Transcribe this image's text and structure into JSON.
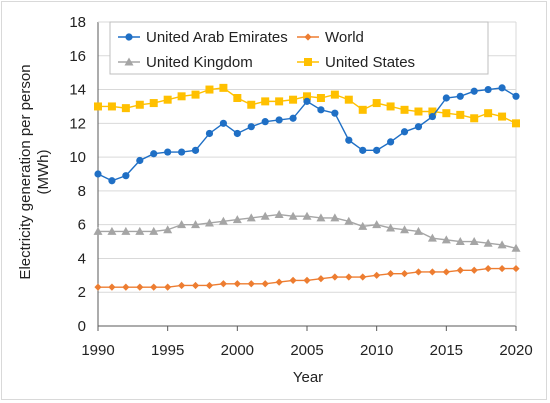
{
  "chart_data": {
    "type": "line",
    "title": "",
    "xlabel": "Year",
    "ylabel_line1": "Electricity generation per person",
    "ylabel_line2": "(MWh)",
    "xlim": [
      1990,
      2020
    ],
    "ylim": [
      0,
      18
    ],
    "xticks": [
      "1990",
      "1995",
      "2000",
      "2005",
      "2010",
      "2015",
      "2020"
    ],
    "yticks": [
      "0",
      "2",
      "4",
      "6",
      "8",
      "10",
      "12",
      "14",
      "16",
      "18"
    ],
    "grid": "horizontal",
    "legend_placement": "top",
    "x": [
      1990,
      1991,
      1992,
      1993,
      1994,
      1995,
      1996,
      1997,
      1998,
      1999,
      2000,
      2001,
      2002,
      2003,
      2004,
      2005,
      2006,
      2007,
      2008,
      2009,
      2010,
      2011,
      2012,
      2013,
      2014,
      2015,
      2016,
      2017,
      2018,
      2019,
      2020
    ],
    "series": [
      {
        "name": "United Arab Emirates",
        "color": "#1f6fc5",
        "marker": "circle",
        "values": [
          9.0,
          8.6,
          8.9,
          9.8,
          10.2,
          10.3,
          10.3,
          10.4,
          11.4,
          12.0,
          11.4,
          11.8,
          12.1,
          12.2,
          12.3,
          13.3,
          12.8,
          12.6,
          11.0,
          10.4,
          10.4,
          10.9,
          11.5,
          11.8,
          12.4,
          13.5,
          13.6,
          13.9,
          14.0,
          14.1,
          13.6
        ]
      },
      {
        "name": "World",
        "color": "#ed7d31",
        "marker": "diamond",
        "values": [
          2.3,
          2.3,
          2.3,
          2.3,
          2.3,
          2.3,
          2.4,
          2.4,
          2.4,
          2.5,
          2.5,
          2.5,
          2.5,
          2.6,
          2.7,
          2.7,
          2.8,
          2.9,
          2.9,
          2.9,
          3.0,
          3.1,
          3.1,
          3.2,
          3.2,
          3.2,
          3.3,
          3.3,
          3.4,
          3.4,
          3.4
        ]
      },
      {
        "name": "United Kingdom",
        "color": "#a5a5a5",
        "marker": "triangle",
        "values": [
          5.6,
          5.6,
          5.6,
          5.6,
          5.6,
          5.7,
          6.0,
          6.0,
          6.1,
          6.2,
          6.3,
          6.4,
          6.5,
          6.6,
          6.5,
          6.5,
          6.4,
          6.4,
          6.2,
          5.9,
          6.0,
          5.8,
          5.7,
          5.6,
          5.2,
          5.1,
          5.0,
          5.0,
          4.9,
          4.8,
          4.6
        ]
      },
      {
        "name": "United States",
        "color": "#ffc000",
        "marker": "square",
        "values": [
          13.0,
          13.0,
          12.9,
          13.1,
          13.2,
          13.4,
          13.6,
          13.7,
          14.0,
          14.1,
          13.5,
          13.1,
          13.3,
          13.3,
          13.4,
          13.6,
          13.5,
          13.7,
          13.4,
          12.8,
          13.2,
          13.0,
          12.8,
          12.7,
          12.7,
          12.6,
          12.5,
          12.3,
          12.6,
          12.4,
          12.0
        ]
      }
    ]
  }
}
